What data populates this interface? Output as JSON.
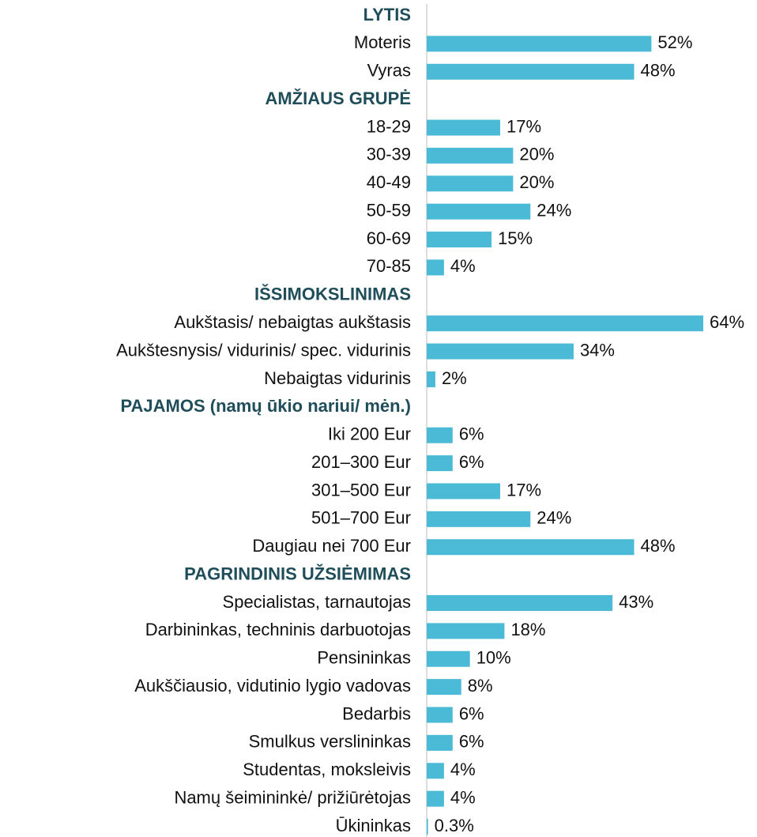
{
  "chart_data": {
    "type": "bar",
    "orientation": "horizontal",
    "color": "#4bbad6",
    "header_color": "#1f4e5a",
    "groups": [
      {
        "name": "LYTIS",
        "categories": [
          "Moteris",
          "Vyras"
        ],
        "values": [
          52,
          48
        ],
        "value_labels": [
          "52%",
          "48%"
        ]
      },
      {
        "name": "AMŽIAUS GRUPĖ",
        "categories": [
          "18-29",
          "30-39",
          "40-49",
          "50-59",
          "60-69",
          "70-85"
        ],
        "values": [
          17,
          20,
          20,
          24,
          15,
          4
        ],
        "value_labels": [
          "17%",
          "20%",
          "20%",
          "24%",
          "15%",
          "4%"
        ]
      },
      {
        "name": "IŠSIMOKSLINIMAS",
        "categories": [
          "Aukštasis/ nebaigtas aukštasis",
          "Aukštesnysis/ vidurinis/ spec.  vidurinis",
          "Nebaigtas vidurinis"
        ],
        "values": [
          64,
          34,
          2
        ],
        "value_labels": [
          "64%",
          "34%",
          "2%"
        ]
      },
      {
        "name": "PAJAMOS (namų ūkio nariui/ mėn.)",
        "categories": [
          "Iki 200 Eur",
          "201–300 Eur",
          "301–500 Eur",
          "501–700 Eur",
          "Daugiau nei 700 Eur"
        ],
        "values": [
          6,
          6,
          17,
          24,
          48
        ],
        "value_labels": [
          "6%",
          "6%",
          "17%",
          "24%",
          "48%"
        ]
      },
      {
        "name": "PAGRINDINIS UŽSIĖMIMAS",
        "categories": [
          "Specialistas, tarnautojas",
          "Darbininkas, techninis darbuotojas",
          "Pensininkas",
          "Aukščiausio, vidutinio lygio vadovas",
          "Bedarbis",
          "Smulkus verslininkas",
          "Studentas, moksleivis",
          "Namų šeimininkė/ prižiūrėtojas",
          "Ūkininkas"
        ],
        "values": [
          43,
          18,
          10,
          8,
          6,
          6,
          4,
          4,
          0.3
        ],
        "value_labels": [
          "43%",
          "18%",
          "10%",
          "8%",
          "6%",
          "6%",
          "4%",
          "4%",
          "0.3%"
        ]
      }
    ]
  }
}
